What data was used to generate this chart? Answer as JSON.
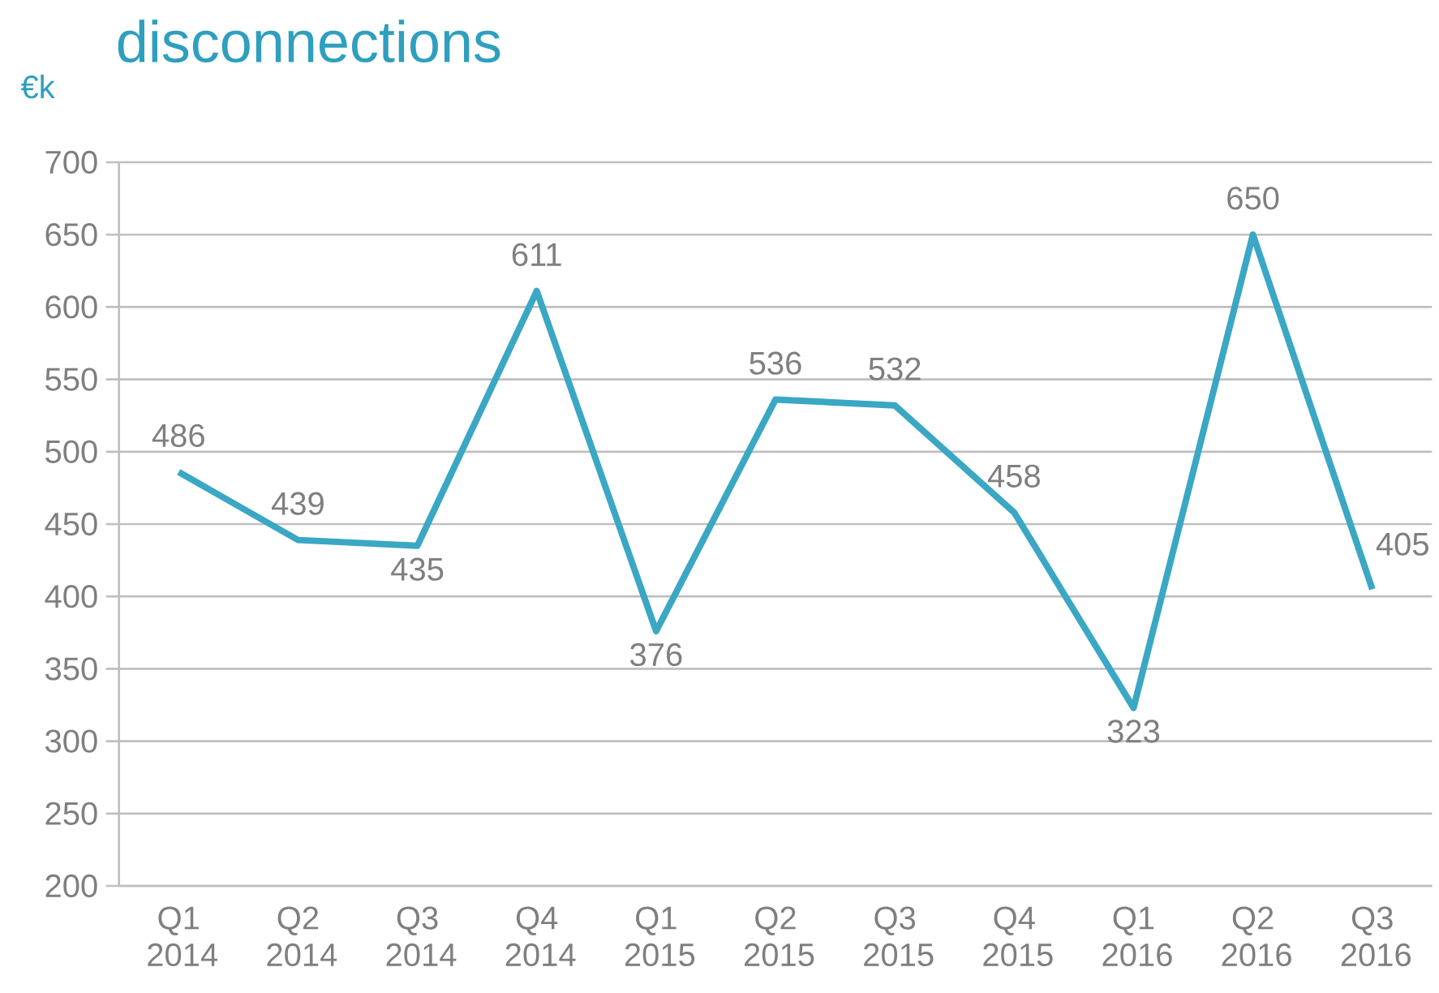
{
  "chart_data": {
    "type": "line",
    "title": "disconnections",
    "ylabel": "€k",
    "categories": [
      "Q1 2014",
      "Q2 2014",
      "Q3 2014",
      "Q4 2014",
      "Q1 2015",
      "Q2 2015",
      "Q3 2015",
      "Q4 2015",
      "Q1 2016",
      "Q2 2016",
      "Q3 2016"
    ],
    "series": [
      {
        "color": "#3aa7c4",
        "values": [
          486,
          439,
          435,
          611,
          376,
          536,
          532,
          458,
          323,
          650,
          405
        ]
      }
    ],
    "ylim": [
      200,
      700
    ],
    "yticks": [
      200,
      250,
      300,
      350,
      400,
      450,
      500,
      550,
      600,
      650,
      700
    ],
    "grid": "y",
    "data_labels": true,
    "marker": "none",
    "line_style": "solid"
  }
}
